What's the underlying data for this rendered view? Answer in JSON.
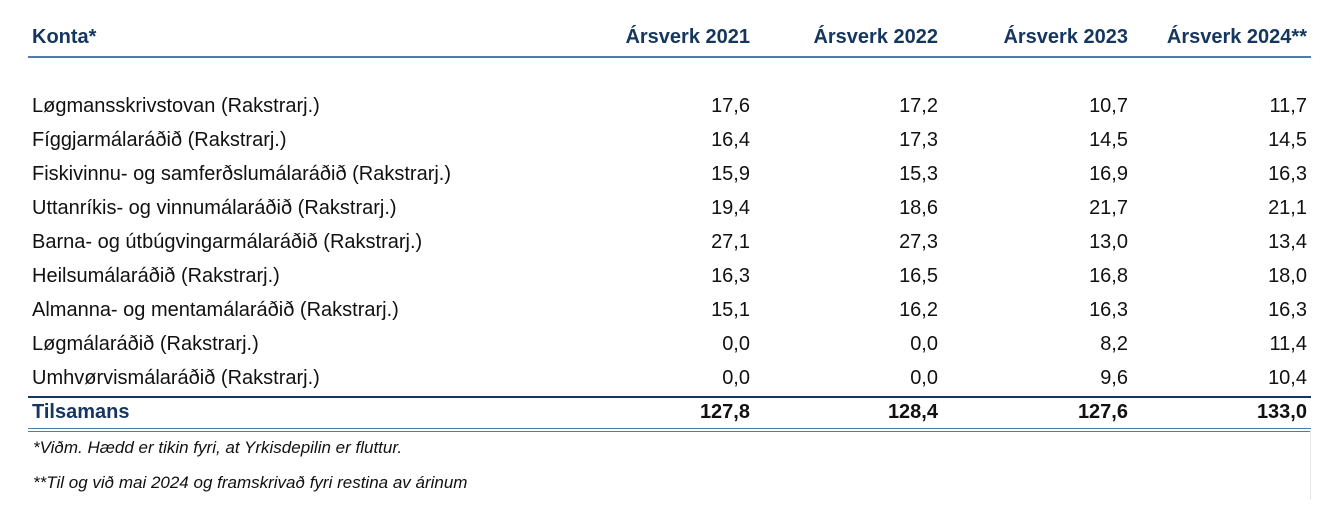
{
  "table": {
    "headers": [
      "Konta*",
      "Ársverk 2021",
      "Ársverk 2022",
      "Ársverk 2023",
      "Ársverk 2024**"
    ],
    "rows": [
      {
        "label": "Løgmansskrivstovan (Rakstrarj.)",
        "values": [
          "17,6",
          "17,2",
          "10,7",
          "11,7"
        ]
      },
      {
        "label": "Fíggjarmálaráðið (Rakstrarj.)",
        "values": [
          "16,4",
          "17,3",
          "14,5",
          "14,5"
        ]
      },
      {
        "label": "Fiskivinnu- og samferðslumálaráðið (Rakstrarj.)",
        "values": [
          "15,9",
          "15,3",
          "16,9",
          "16,3"
        ]
      },
      {
        "label": "Uttanríkis- og vinnumálaráðið (Rakstrarj.)",
        "values": [
          "19,4",
          "18,6",
          "21,7",
          "21,1"
        ]
      },
      {
        "label": "Barna- og útbúgvingarmálaráðið (Rakstrarj.)",
        "values": [
          "27,1",
          "27,3",
          "13,0",
          "13,4"
        ]
      },
      {
        "label": "Heilsumálaráðið (Rakstrarj.)",
        "values": [
          "16,3",
          "16,5",
          "16,8",
          "18,0"
        ]
      },
      {
        "label": "Almanna- og mentamálaráðið (Rakstrarj.)",
        "values": [
          "15,1",
          "16,2",
          "16,3",
          "16,3"
        ]
      },
      {
        "label": "Løgmálaráðið (Rakstrarj.)",
        "values": [
          "0,0",
          "0,0",
          "8,2",
          "11,4"
        ]
      },
      {
        "label": "Umhvørvismálaráðið (Rakstrarj.)",
        "values": [
          "0,0",
          "0,0",
          "9,6",
          "10,4"
        ]
      }
    ],
    "total": {
      "label": "Tilsamans",
      "values": [
        "127,8",
        "128,4",
        "127,6",
        "133,0"
      ]
    }
  },
  "footnotes": [
    "*Viðm. Hædd er tikin fyri, at Yrkisdepilin er fluttur.",
    "**Til og við mai 2024 og framskrivað fyri restina av árinum"
  ],
  "colors": {
    "header_text": "#15365f",
    "rule_accent": "#4a7eb0"
  }
}
